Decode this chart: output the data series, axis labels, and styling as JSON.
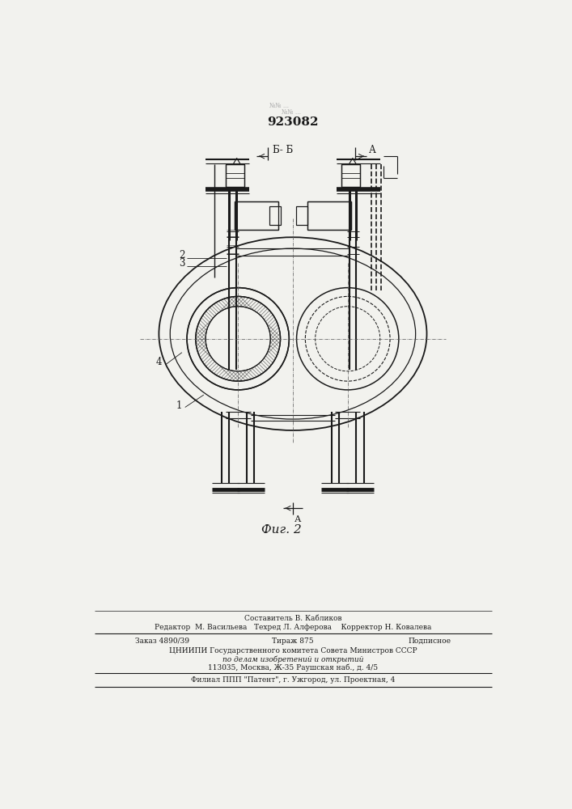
{
  "title": "923082",
  "fig_label": "Фиг. 2",
  "bg_color": "#f2f2ee",
  "line_color": "#1a1a1a",
  "footer_lines": [
    "Составитель В. Кабликов",
    "Редактор  М. Васильева   Техред Л. Алферова    Корректор Н. Ковалева",
    "Заказ 4890/39              Тираж 875                  Подписное",
    "ЦНИИПИ Государственного комитета Совета Министров СССР",
    "по делам изобретений и открытий",
    "113035, Москва, Ж-35 Раушская наб., д. 4/5",
    "Филиал ППП \"Патент\", г. Ужгород, ул. Проектная, 4"
  ]
}
